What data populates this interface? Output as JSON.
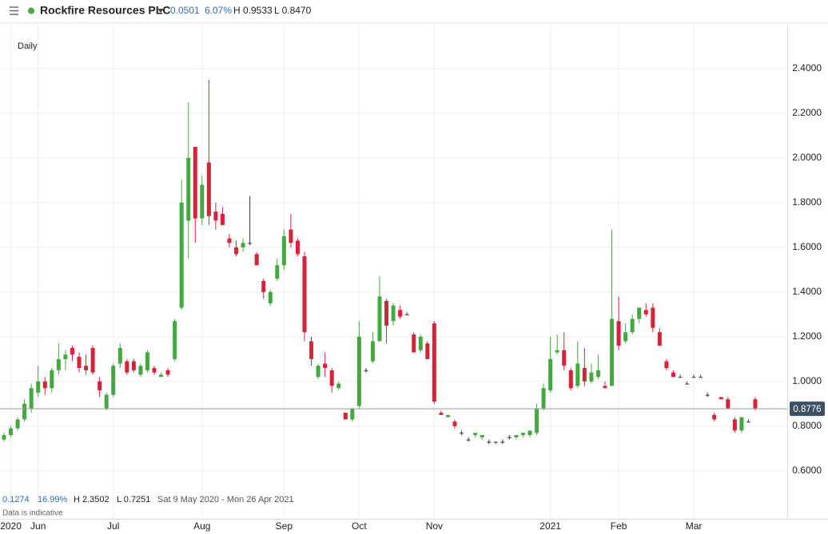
{
  "chart_data": {
    "type": "candlestick",
    "title": "Rockfire Resources PLC",
    "period": "Daily",
    "header": {
      "change": "0.0501",
      "change_pct": "6.07%",
      "high": "H 0.9533",
      "low": "L 0.8470"
    },
    "summary": {
      "change": "0.1274",
      "change_pct": "16.99%",
      "high": "H 2.3502",
      "low": "L 0.7251",
      "range": "Sat 9 May 2020 - Mon 26 Apr 2021",
      "note": "Data is indicative"
    },
    "categories": [
      null,
      "2020",
      null,
      null,
      null,
      "Jun",
      null,
      null,
      null,
      null,
      null,
      null,
      null,
      null,
      null,
      null,
      "Jul",
      null,
      null,
      null,
      null,
      null,
      null,
      null,
      null,
      null,
      null,
      null,
      null,
      "Aug",
      null,
      null,
      null,
      null,
      null,
      null,
      null,
      null,
      null,
      null,
      null,
      "Sep",
      null,
      null,
      null,
      null,
      null,
      null,
      null,
      null,
      null,
      null,
      "Oct",
      null,
      null,
      null,
      null,
      null,
      null,
      null,
      null,
      null,
      null,
      "Nov",
      null,
      null,
      null,
      null,
      null,
      null,
      null,
      null,
      null,
      null,
      null,
      null,
      null,
      null,
      null,
      null,
      "2021",
      null,
      null,
      null,
      null,
      null,
      null,
      null,
      null,
      null,
      "Feb",
      null,
      null,
      null,
      null,
      null,
      null,
      null,
      null,
      null,
      null,
      "Mar",
      null,
      null,
      null,
      null,
      null,
      null,
      null,
      null,
      null
    ],
    "open": [
      0.74,
      0.76,
      0.79,
      0.83,
      0.88,
      0.95,
      1.0,
      0.97,
      1.05,
      1.1,
      1.15,
      1.11,
      1.07,
      1.15,
      1.0,
      0.88,
      0.94,
      1.08,
      1.09,
      1.09,
      1.03,
      1.05,
      1.06,
      1.02,
      1.05,
      1.1,
      1.33,
      1.72,
      2.05,
      1.73,
      1.98,
      1.76,
      1.75,
      1.64,
      1.6,
      1.6,
      1.62,
      1.57,
      1.45,
      1.35,
      1.46,
      1.52,
      1.68,
      1.63,
      1.56,
      1.18,
      1.02,
      1.08,
      1.05,
      0.97,
      0.86,
      0.83,
      0.89,
      1.05,
      1.09,
      1.18,
      1.36,
      1.27,
      1.32,
      1.3,
      1.21,
      1.14,
      1.17,
      1.26,
      0.86,
      0.84,
      0.82,
      0.77,
      0.74,
      0.76,
      0.75,
      0.73,
      0.73,
      0.73,
      0.75,
      0.75,
      0.76,
      0.76,
      0.77,
      0.88,
      0.96,
      1.13,
      1.14,
      1.05,
      0.98,
      1.06,
      1.0,
      1.02,
      0.98,
      0.98,
      1.27,
      1.18,
      1.22,
      1.28,
      1.32,
      1.33,
      1.22,
      1.09,
      1.04,
      1.02,
      0.99,
      1.02,
      1.02,
      0.94,
      0.85,
      0.93,
      0.92,
      0.83,
      0.78,
      0.82,
      0.92
    ],
    "high": [
      0.77,
      0.8,
      0.84,
      0.92,
      0.99,
      1.07,
      1.02,
      1.06,
      1.17,
      1.14,
      1.16,
      1.13,
      1.12,
      1.16,
      1.02,
      0.95,
      1.08,
      1.17,
      1.1,
      1.1,
      1.08,
      1.14,
      1.07,
      1.04,
      1.06,
      1.28,
      1.9,
      2.25,
      2.05,
      1.92,
      2.35,
      1.8,
      1.78,
      1.66,
      1.63,
      1.64,
      1.83,
      1.58,
      1.46,
      1.41,
      1.55,
      1.68,
      1.75,
      1.64,
      1.58,
      1.2,
      1.08,
      1.13,
      1.06,
      1.0,
      0.86,
      0.88,
      1.27,
      1.06,
      1.22,
      1.47,
      1.37,
      1.35,
      1.34,
      1.31,
      1.22,
      1.21,
      1.18,
      1.27,
      0.87,
      0.85,
      0.83,
      0.78,
      0.75,
      0.77,
      0.76,
      0.74,
      0.73,
      0.74,
      0.76,
      0.76,
      0.77,
      0.78,
      0.9,
      0.99,
      1.2,
      1.21,
      1.22,
      1.06,
      1.18,
      1.15,
      1.08,
      1.12,
      1.0,
      1.68,
      1.38,
      1.26,
      1.3,
      1.33,
      1.35,
      1.35,
      1.24,
      1.1,
      1.05,
      1.03,
      1.0,
      1.03,
      1.03,
      0.95,
      0.86,
      0.93,
      0.93,
      0.84,
      0.84,
      0.83,
      0.93
    ],
    "low": [
      0.73,
      0.75,
      0.78,
      0.82,
      0.86,
      0.93,
      0.94,
      0.95,
      1.03,
      1.05,
      1.09,
      1.04,
      1.03,
      1.03,
      0.93,
      0.87,
      0.93,
      1.06,
      1.03,
      1.04,
      1.02,
      1.04,
      1.03,
      1.02,
      1.02,
      1.09,
      1.32,
      1.55,
      1.62,
      1.7,
      1.7,
      1.68,
      1.7,
      1.6,
      1.56,
      1.58,
      1.61,
      1.52,
      1.37,
      1.34,
      1.45,
      1.5,
      1.6,
      1.56,
      1.18,
      1.07,
      1.01,
      1.02,
      0.95,
      0.96,
      0.83,
      0.82,
      0.88,
      1.04,
      1.08,
      1.18,
      1.17,
      1.25,
      1.28,
      1.3,
      1.13,
      1.13,
      1.1,
      0.9,
      0.85,
      0.84,
      0.79,
      0.76,
      0.73,
      0.75,
      0.74,
      0.72,
      0.72,
      0.72,
      0.74,
      0.74,
      0.75,
      0.75,
      0.76,
      0.87,
      0.95,
      1.12,
      1.05,
      0.96,
      0.97,
      0.98,
      0.99,
      1.01,
      0.97,
      0.98,
      1.14,
      1.17,
      1.21,
      1.26,
      1.29,
      1.22,
      1.16,
      1.05,
      1.02,
      1.02,
      0.99,
      1.02,
      1.02,
      0.93,
      0.82,
      0.92,
      0.88,
      0.77,
      0.77,
      0.82,
      0.87
    ],
    "close": [
      0.76,
      0.79,
      0.83,
      0.9,
      0.97,
      1.0,
      0.97,
      1.05,
      1.1,
      1.12,
      1.12,
      1.06,
      1.05,
      1.04,
      0.96,
      0.94,
      1.07,
      1.15,
      1.04,
      1.05,
      1.07,
      1.13,
      1.04,
      1.03,
      1.03,
      1.27,
      1.8,
      2.0,
      1.73,
      1.88,
      1.74,
      1.72,
      1.7,
      1.62,
      1.57,
      1.62,
      1.62,
      1.52,
      1.4,
      1.4,
      1.52,
      1.65,
      1.62,
      1.57,
      1.22,
      1.1,
      1.07,
      1.06,
      0.98,
      0.99,
      0.83,
      0.88,
      1.2,
      1.05,
      1.18,
      1.38,
      1.25,
      1.34,
      1.29,
      1.3,
      1.13,
      1.2,
      1.1,
      0.91,
      0.85,
      0.85,
      0.8,
      0.77,
      0.74,
      0.77,
      0.76,
      0.73,
      0.73,
      0.73,
      0.75,
      0.76,
      0.77,
      0.78,
      0.88,
      0.97,
      1.1,
      1.14,
      1.07,
      0.97,
      1.08,
      1.0,
      1.04,
      1.05,
      0.97,
      1.28,
      1.16,
      1.22,
      1.28,
      1.33,
      1.3,
      1.24,
      1.16,
      1.06,
      1.02,
      1.02,
      0.99,
      1.02,
      1.02,
      0.94,
      0.83,
      0.92,
      0.88,
      0.78,
      0.84,
      0.82,
      0.88
    ],
    "up_color": "#43a83f",
    "down_color": "#d7223a",
    "flat_color": "#333333",
    "last_price": 0.8776,
    "ylim": [
      0.41,
      2.6
    ],
    "yticks": [
      {
        "value": 0.6,
        "label": "0.6000"
      },
      {
        "value": 0.8,
        "label": "0.8000"
      },
      {
        "value": 1.0,
        "label": "1.0000"
      },
      {
        "value": 1.2,
        "label": "1.2000"
      },
      {
        "value": 1.4,
        "label": "1.4000"
      },
      {
        "value": 1.6,
        "label": "1.6000"
      },
      {
        "value": 1.8,
        "label": "1.8000"
      },
      {
        "value": 2.0,
        "label": "2.0000"
      },
      {
        "value": 2.2,
        "label": "2.2000"
      },
      {
        "value": 2.4,
        "label": "2.4000"
      }
    ],
    "grid": true
  }
}
